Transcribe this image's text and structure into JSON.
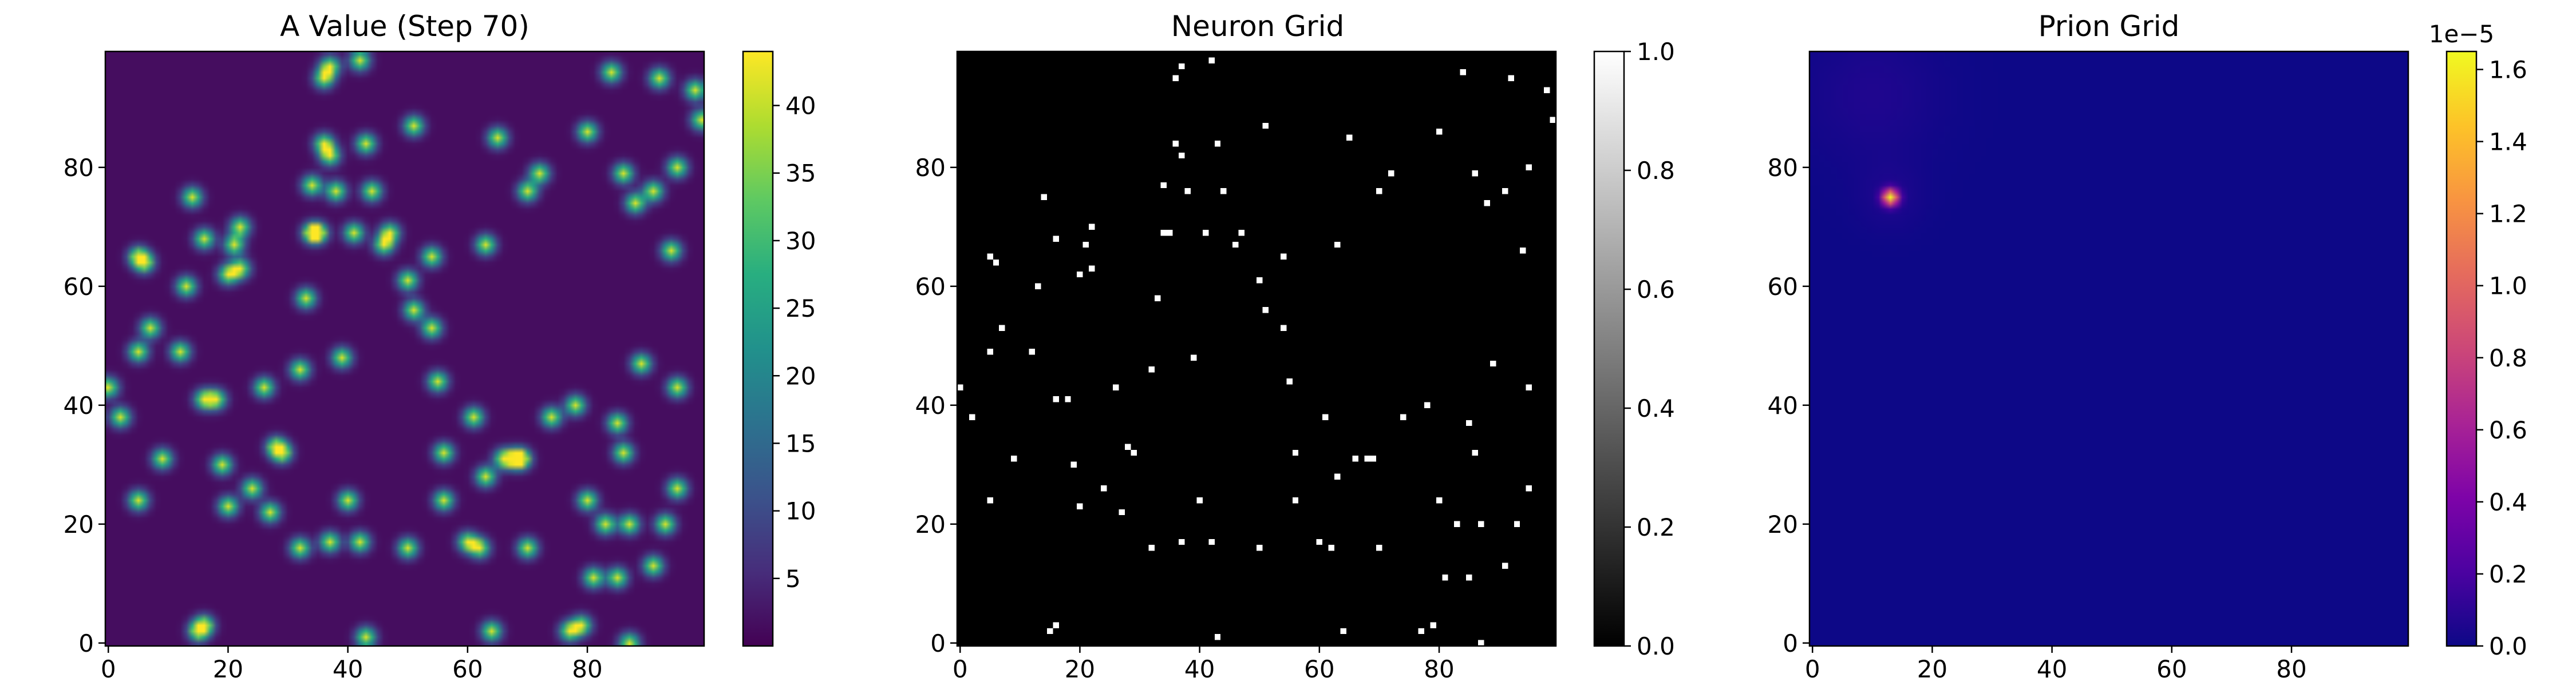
{
  "chart_data": [
    {
      "type": "heatmap",
      "title": "A Value (Step 70)",
      "colormap": "viridis",
      "xlim": [
        0,
        99
      ],
      "ylim": [
        0,
        99
      ],
      "x_ticks": [
        "0",
        "20",
        "40",
        "60",
        "80"
      ],
      "y_ticks": [
        "0",
        "20",
        "40",
        "60",
        "80"
      ],
      "colorbar": {
        "min": 0,
        "max": 44,
        "ticks": [
          "5",
          "10",
          "15",
          "20",
          "25",
          "30",
          "35",
          "40"
        ],
        "tick_values": [
          5,
          10,
          15,
          20,
          25,
          30,
          35,
          40
        ],
        "multiplier": ""
      },
      "background_value": 1.5,
      "blob_peak": 40
    },
    {
      "type": "heatmap",
      "title": "Neuron Grid",
      "colormap": "gray",
      "xlim": [
        0,
        99
      ],
      "ylim": [
        0,
        99
      ],
      "x_ticks": [
        "0",
        "20",
        "40",
        "60",
        "80"
      ],
      "y_ticks": [
        "0",
        "20",
        "40",
        "60",
        "80"
      ],
      "colorbar": {
        "min": 0,
        "max": 1,
        "ticks": [
          "0.0",
          "0.2",
          "0.4",
          "0.6",
          "0.8",
          "1.0"
        ],
        "tick_values": [
          0,
          0.2,
          0.4,
          0.6,
          0.8,
          1.0
        ],
        "multiplier": ""
      }
    },
    {
      "type": "heatmap",
      "title": "Prion Grid",
      "colormap": "plasma",
      "xlim": [
        0,
        99
      ],
      "ylim": [
        0,
        99
      ],
      "x_ticks": [
        "0",
        "20",
        "40",
        "60",
        "80"
      ],
      "y_ticks": [
        "0",
        "20",
        "40",
        "60",
        "80"
      ],
      "colorbar": {
        "min": 0,
        "max": 1.65,
        "ticks": [
          "0.0",
          "0.2",
          "0.4",
          "0.6",
          "0.8",
          "1.0",
          "1.2",
          "1.4",
          "1.6"
        ],
        "tick_values": [
          0,
          0.2,
          0.4,
          0.6,
          0.8,
          1.0,
          1.2,
          1.4,
          1.6
        ],
        "multiplier": "1e−5"
      },
      "hotspot": {
        "x": 13,
        "y": 75,
        "value": 1.65
      },
      "faint_region": {
        "x": 10,
        "y": 92,
        "value": 0.06
      }
    }
  ],
  "neuron_cells": [
    [
      0,
      43
    ],
    [
      2,
      38
    ],
    [
      5,
      24
    ],
    [
      5,
      49
    ],
    [
      5,
      65
    ],
    [
      6,
      64
    ],
    [
      7,
      53
    ],
    [
      9,
      31
    ],
    [
      12,
      49
    ],
    [
      13,
      60
    ],
    [
      14,
      75
    ],
    [
      15,
      2
    ],
    [
      16,
      3
    ],
    [
      16,
      41
    ],
    [
      16,
      68
    ],
    [
      18,
      41
    ],
    [
      19,
      30
    ],
    [
      20,
      23
    ],
    [
      20,
      62
    ],
    [
      21,
      67
    ],
    [
      22,
      70
    ],
    [
      22,
      63
    ],
    [
      24,
      26
    ],
    [
      26,
      43
    ],
    [
      27,
      22
    ],
    [
      28,
      33
    ],
    [
      29,
      32
    ],
    [
      32,
      16
    ],
    [
      32,
      46
    ],
    [
      33,
      58
    ],
    [
      34,
      77
    ],
    [
      34,
      69
    ],
    [
      35,
      69
    ],
    [
      36,
      84
    ],
    [
      36,
      95
    ],
    [
      37,
      17
    ],
    [
      37,
      97
    ],
    [
      37,
      82
    ],
    [
      38,
      76
    ],
    [
      39,
      48
    ],
    [
      40,
      24
    ],
    [
      41,
      69
    ],
    [
      42,
      17
    ],
    [
      42,
      98
    ],
    [
      43,
      84
    ],
    [
      43,
      1
    ],
    [
      44,
      76
    ],
    [
      46,
      67
    ],
    [
      47,
      69
    ],
    [
      50,
      16
    ],
    [
      50,
      61
    ],
    [
      51,
      87
    ],
    [
      51,
      56
    ],
    [
      54,
      53
    ],
    [
      54,
      65
    ],
    [
      55,
      44
    ],
    [
      56,
      24
    ],
    [
      56,
      32
    ],
    [
      60,
      17
    ],
    [
      61,
      38
    ],
    [
      62,
      16
    ],
    [
      63,
      28
    ],
    [
      63,
      67
    ],
    [
      64,
      2
    ],
    [
      65,
      85
    ],
    [
      66,
      31
    ],
    [
      68,
      31
    ],
    [
      69,
      31
    ],
    [
      70,
      16
    ],
    [
      70,
      76
    ],
    [
      72,
      79
    ],
    [
      74,
      38
    ],
    [
      77,
      2
    ],
    [
      78,
      40
    ],
    [
      79,
      3
    ],
    [
      80,
      24
    ],
    [
      80,
      86
    ],
    [
      81,
      11
    ],
    [
      83,
      20
    ],
    [
      84,
      96
    ],
    [
      85,
      11
    ],
    [
      85,
      37
    ],
    [
      86,
      32
    ],
    [
      86,
      79
    ],
    [
      87,
      0
    ],
    [
      87,
      20
    ],
    [
      88,
      74
    ],
    [
      89,
      47
    ],
    [
      91,
      76
    ],
    [
      91,
      13
    ],
    [
      92,
      95
    ],
    [
      93,
      20
    ],
    [
      94,
      66
    ],
    [
      95,
      26
    ],
    [
      95,
      43
    ],
    [
      95,
      80
    ],
    [
      98,
      93
    ],
    [
      99,
      88
    ]
  ]
}
